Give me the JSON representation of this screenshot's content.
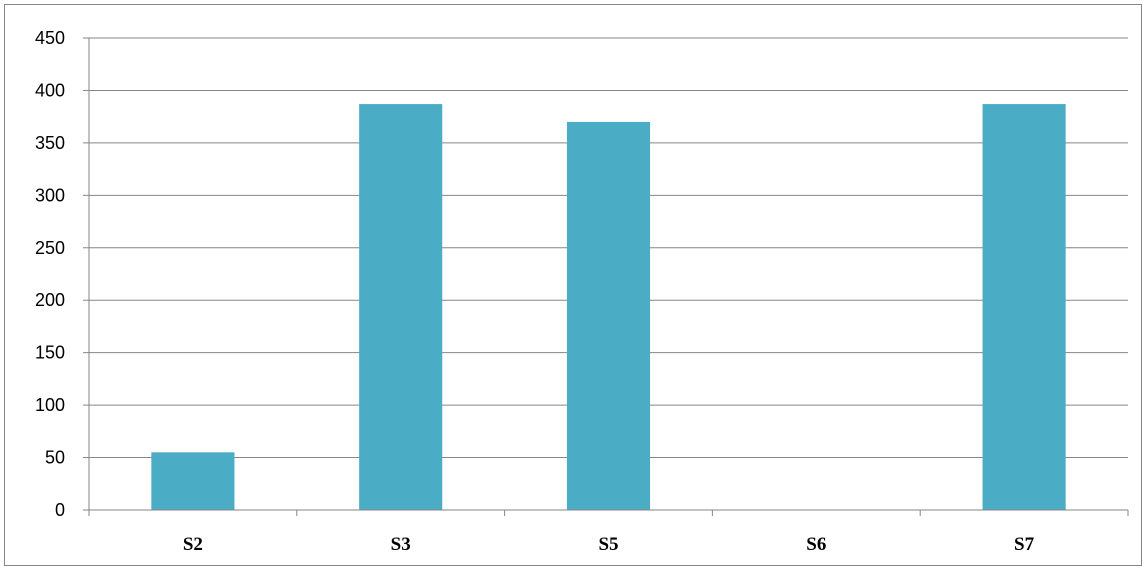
{
  "chart_data": {
    "type": "bar",
    "title": "",
    "xlabel": "",
    "ylabel": "",
    "categories": [
      "S2",
      "S3",
      "S5",
      "S6",
      "S7"
    ],
    "series": [
      {
        "values": [
          55,
          387,
          370,
          0,
          387
        ]
      }
    ],
    "ylim": [
      0,
      450
    ],
    "yticks": [
      0,
      50,
      100,
      150,
      200,
      250,
      300,
      350,
      400,
      450
    ],
    "grid": true,
    "legend": "none",
    "colors": {
      "bar": "#4BACC6",
      "grid": "#868686",
      "axis": "#868686"
    }
  }
}
